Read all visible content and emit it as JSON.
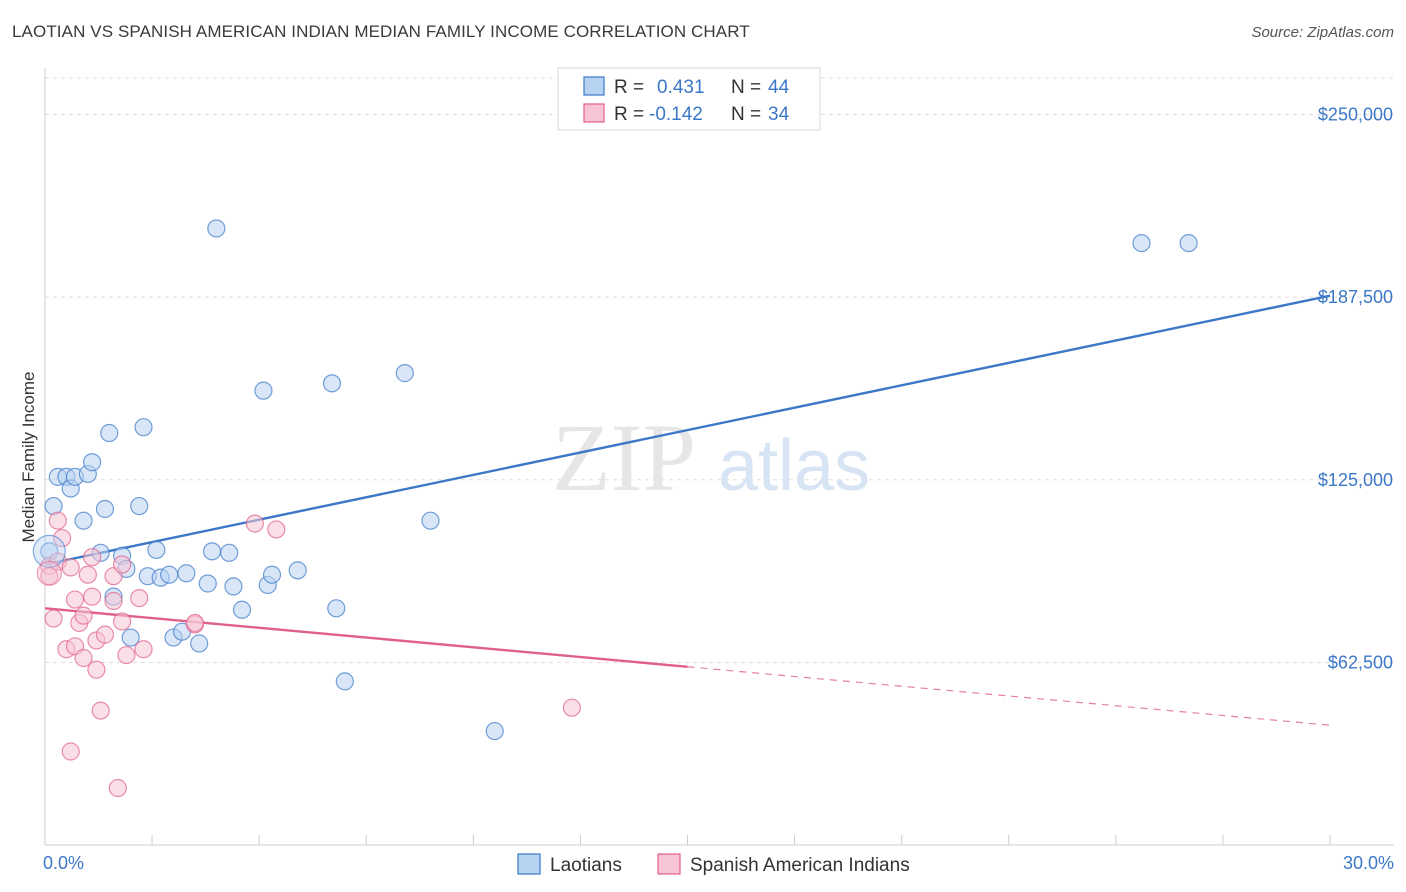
{
  "title": "LAOTIAN VS SPANISH AMERICAN INDIAN MEDIAN FAMILY INCOME CORRELATION CHART",
  "source": "Source: ZipAtlas.com",
  "watermark": {
    "zip": "ZIP",
    "atlas": "atlas"
  },
  "colors": {
    "blue": "#3c78c8",
    "blue_fill": "#b8d2f2",
    "pink": "#e0608a",
    "pink_fill": "#f6c4d4",
    "grid": "#dddddd"
  },
  "legend": {
    "rows": [
      {
        "r_label": "R =",
        "r_value": "0.431",
        "n_label": "N =",
        "n_value": "44",
        "color": "blue"
      },
      {
        "r_label": "R =",
        "r_value": "-0.142",
        "n_label": "N =",
        "n_value": "34",
        "color": "pink"
      }
    ]
  },
  "bottom_legend": [
    {
      "label": "Laotians",
      "color": "blue"
    },
    {
      "label": "Spanish American Indians",
      "color": "pink"
    }
  ],
  "chart_data": {
    "type": "scatter",
    "ylabel": "Median Family Income",
    "xlim": [
      0,
      30
    ],
    "ylim": [
      0,
      262500
    ],
    "x_tick_labels": [
      "0.0%",
      "30.0%"
    ],
    "y_ticks": [
      {
        "value": 62500,
        "label": "$62,500"
      },
      {
        "value": 125000,
        "label": "$125,000"
      },
      {
        "value": 187500,
        "label": "$187,500"
      },
      {
        "value": 250000,
        "label": "$250,000"
      }
    ],
    "series": [
      {
        "name": "Laotians",
        "color": "blue",
        "points": [
          [
            0.1,
            100500
          ],
          [
            0.2,
            116000
          ],
          [
            0.3,
            126000
          ],
          [
            0.5,
            126000
          ],
          [
            0.6,
            122000
          ],
          [
            0.7,
            126000
          ],
          [
            0.9,
            111000
          ],
          [
            1.0,
            127000
          ],
          [
            1.1,
            131000
          ],
          [
            1.3,
            100000
          ],
          [
            1.4,
            115000
          ],
          [
            1.5,
            141000
          ],
          [
            1.6,
            85000
          ],
          [
            1.8,
            99000
          ],
          [
            1.9,
            94500
          ],
          [
            2.0,
            71000
          ],
          [
            2.2,
            116000
          ],
          [
            2.3,
            143000
          ],
          [
            2.4,
            92000
          ],
          [
            2.6,
            101000
          ],
          [
            2.7,
            91500
          ],
          [
            2.9,
            92500
          ],
          [
            3.0,
            71000
          ],
          [
            3.2,
            73000
          ],
          [
            3.3,
            93000
          ],
          [
            3.6,
            69000
          ],
          [
            3.8,
            89500
          ],
          [
            3.9,
            100500
          ],
          [
            4.0,
            211000
          ],
          [
            4.3,
            100000
          ],
          [
            4.4,
            88500
          ],
          [
            4.6,
            80500
          ],
          [
            5.1,
            155500
          ],
          [
            5.2,
            89000
          ],
          [
            5.3,
            92500
          ],
          [
            5.9,
            94000
          ],
          [
            6.7,
            158000
          ],
          [
            6.8,
            81000
          ],
          [
            7.0,
            56000
          ],
          [
            8.4,
            161500
          ],
          [
            9.0,
            111000
          ],
          [
            10.5,
            39000
          ],
          [
            25.6,
            206000
          ],
          [
            26.7,
            206000
          ]
        ],
        "trend": {
          "x": [
            0,
            30
          ],
          "y": [
            96000,
            188000
          ],
          "dashed_from_x": null
        }
      },
      {
        "name": "Spanish American Indians",
        "color": "pink",
        "points": [
          [
            0.1,
            95500
          ],
          [
            0.1,
            92000
          ],
          [
            0.2,
            77500
          ],
          [
            0.3,
            97000
          ],
          [
            0.3,
            111000
          ],
          [
            0.4,
            105000
          ],
          [
            0.5,
            67000
          ],
          [
            0.6,
            32000
          ],
          [
            0.6,
            95000
          ],
          [
            0.7,
            68000
          ],
          [
            0.7,
            84000
          ],
          [
            0.8,
            76000
          ],
          [
            0.9,
            64000
          ],
          [
            0.9,
            78500
          ],
          [
            1.0,
            92500
          ],
          [
            1.1,
            85000
          ],
          [
            1.1,
            98500
          ],
          [
            1.2,
            70000
          ],
          [
            1.2,
            60000
          ],
          [
            1.3,
            46000
          ],
          [
            1.4,
            72000
          ],
          [
            1.6,
            83500
          ],
          [
            1.6,
            92000
          ],
          [
            1.7,
            19500
          ],
          [
            1.8,
            76500
          ],
          [
            1.8,
            96000
          ],
          [
            1.9,
            65000
          ],
          [
            2.2,
            84500
          ],
          [
            2.3,
            67000
          ],
          [
            3.5,
            75500
          ],
          [
            3.5,
            76000
          ],
          [
            4.9,
            110000
          ],
          [
            5.4,
            108000
          ],
          [
            12.3,
            47000
          ]
        ],
        "trend": {
          "x": [
            0,
            30
          ],
          "y": [
            81000,
            41000
          ],
          "dashed_from_x": 15
        }
      }
    ]
  }
}
